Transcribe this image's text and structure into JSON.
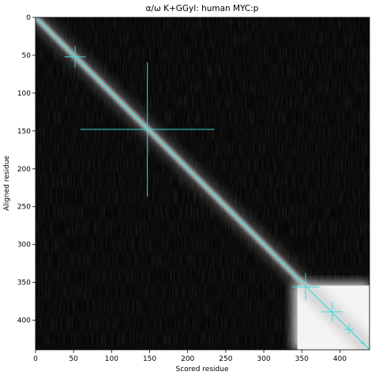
{
  "chart_data": {
    "type": "heatmap",
    "title": "α/ω K+GGyl: human MYC:p",
    "xlabel": "Scored residue",
    "ylabel": "Aligned residue",
    "xlim": [
      0,
      439
    ],
    "ylim": [
      439,
      0
    ],
    "xticks": [
      0,
      50,
      100,
      150,
      200,
      250,
      300,
      350,
      400
    ],
    "yticks": [
      0,
      50,
      100,
      150,
      200,
      250,
      300,
      350,
      400
    ],
    "colormap": "grayscale",
    "bright_blocks": [
      {
        "x": [
          338,
          439
        ],
        "y": [
          350,
          439
        ]
      }
    ],
    "diagonal_color": "#40d8d8",
    "crosshair_markers": [
      {
        "x": 52,
        "y": 52,
        "size": 14
      },
      {
        "x": 147,
        "y": 148,
        "size": 88
      },
      {
        "x": 355,
        "y": 356,
        "size": 18
      },
      {
        "x": 390,
        "y": 389,
        "size": 13
      },
      {
        "x": 412,
        "y": 412,
        "size": 6
      },
      {
        "x": 430,
        "y": 430,
        "size": 2
      },
      {
        "x": 323,
        "y": 323,
        "size": 2
      },
      {
        "x": 297,
        "y": 296,
        "size": 1.5
      },
      {
        "x": 270,
        "y": 270,
        "size": 1.5
      }
    ],
    "grid": false
  },
  "colors": {
    "background": "#000000",
    "marker": "#40d8d8"
  }
}
